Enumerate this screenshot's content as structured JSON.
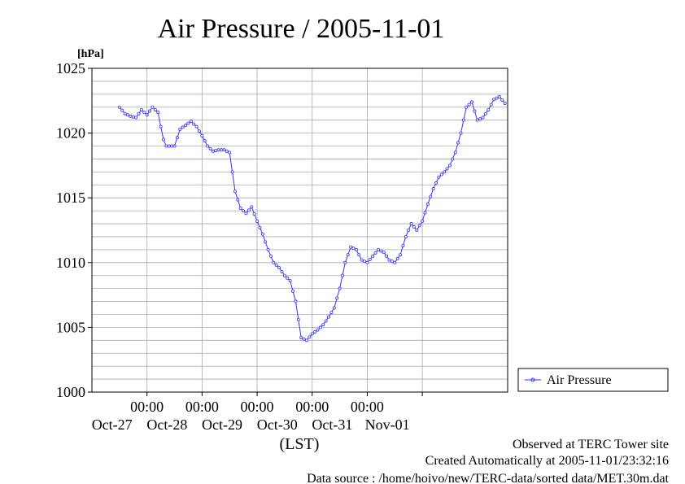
{
  "chart_data": {
    "type": "line",
    "title": "Air Pressure / 2005-11-01",
    "ylabel": "[hPa]",
    "xlabel": "(LST)",
    "ylim": [
      1000,
      1025
    ],
    "yticks": [
      "1000",
      "1005",
      "1010",
      "1015",
      "1020",
      "1025"
    ],
    "xlim_days": [
      -0.5,
      5.5
    ],
    "xticks": [
      {
        "time": "00:00",
        "date": "Oct-27"
      },
      {
        "time": "00:00",
        "date": "Oct-28"
      },
      {
        "time": "00:00",
        "date": "Oct-29"
      },
      {
        "time": "00:00",
        "date": "Oct-30"
      },
      {
        "time": "00:00",
        "date": "Oct-31"
      },
      {
        "time": "",
        "date": "Nov-01"
      }
    ],
    "grid": true,
    "legend": {
      "position": "right",
      "entries": [
        "Air Pressure"
      ]
    },
    "series": [
      {
        "name": "Air Pressure",
        "color": "#3333ff",
        "points": [
          [
            -0.5,
            1022.0
          ],
          [
            -0.4,
            1021.5
          ],
          [
            -0.3,
            1021.3
          ],
          [
            -0.2,
            1021.2
          ],
          [
            -0.1,
            1021.8
          ],
          [
            0.0,
            1021.4
          ],
          [
            0.1,
            1022.0
          ],
          [
            0.2,
            1021.6
          ],
          [
            0.25,
            1020.5
          ],
          [
            0.3,
            1019.5
          ],
          [
            0.35,
            1019.0
          ],
          [
            0.5,
            1019.0
          ],
          [
            0.6,
            1020.3
          ],
          [
            0.7,
            1020.6
          ],
          [
            0.8,
            1020.9
          ],
          [
            0.9,
            1020.5
          ],
          [
            1.0,
            1019.8
          ],
          [
            1.1,
            1019.0
          ],
          [
            1.2,
            1018.6
          ],
          [
            1.3,
            1018.7
          ],
          [
            1.4,
            1018.7
          ],
          [
            1.5,
            1018.5
          ],
          [
            1.55,
            1017.0
          ],
          [
            1.6,
            1015.5
          ],
          [
            1.7,
            1014.2
          ],
          [
            1.8,
            1013.8
          ],
          [
            1.9,
            1014.3
          ],
          [
            2.0,
            1013.2
          ],
          [
            2.1,
            1012.2
          ],
          [
            2.2,
            1011.0
          ],
          [
            2.3,
            1010.0
          ],
          [
            2.4,
            1009.6
          ],
          [
            2.5,
            1009.0
          ],
          [
            2.6,
            1008.6
          ],
          [
            2.7,
            1007.0
          ],
          [
            2.8,
            1004.2
          ],
          [
            2.9,
            1004.0
          ],
          [
            3.0,
            1004.5
          ],
          [
            3.1,
            1004.8
          ],
          [
            3.2,
            1005.2
          ],
          [
            3.3,
            1005.8
          ],
          [
            3.4,
            1006.5
          ],
          [
            3.5,
            1008.0
          ],
          [
            3.6,
            1010.0
          ],
          [
            3.7,
            1011.2
          ],
          [
            3.8,
            1011.0
          ],
          [
            3.9,
            1010.2
          ],
          [
            4.0,
            1010.0
          ],
          [
            4.1,
            1010.5
          ],
          [
            4.2,
            1011.0
          ],
          [
            4.3,
            1010.8
          ],
          [
            4.4,
            1010.2
          ],
          [
            4.5,
            1010.0
          ],
          [
            4.6,
            1010.6
          ],
          [
            4.7,
            1012.0
          ],
          [
            4.8,
            1013.0
          ],
          [
            4.9,
            1012.5
          ],
          [
            5.0,
            1013.2
          ],
          [
            5.1,
            1014.5
          ],
          [
            5.2,
            1015.7
          ],
          [
            5.3,
            1016.6
          ],
          [
            5.4,
            1017.0
          ],
          [
            5.5,
            1017.5
          ],
          [
            5.6,
            1018.5
          ],
          [
            5.7,
            1020.0
          ],
          [
            5.8,
            1022.0
          ],
          [
            5.9,
            1022.4
          ],
          [
            6.0,
            1021.0
          ],
          [
            6.1,
            1021.2
          ],
          [
            6.2,
            1021.8
          ],
          [
            6.3,
            1022.6
          ],
          [
            6.4,
            1022.8
          ],
          [
            6.5,
            1022.3
          ]
        ]
      }
    ],
    "footer": [
      "Observed at TERC Tower site",
      "Created Automatically at 2005-11-01/23:32:16",
      "Data source : /home/hoivo/new/TERC-data/sorted  data/MET.30m.dat"
    ]
  }
}
